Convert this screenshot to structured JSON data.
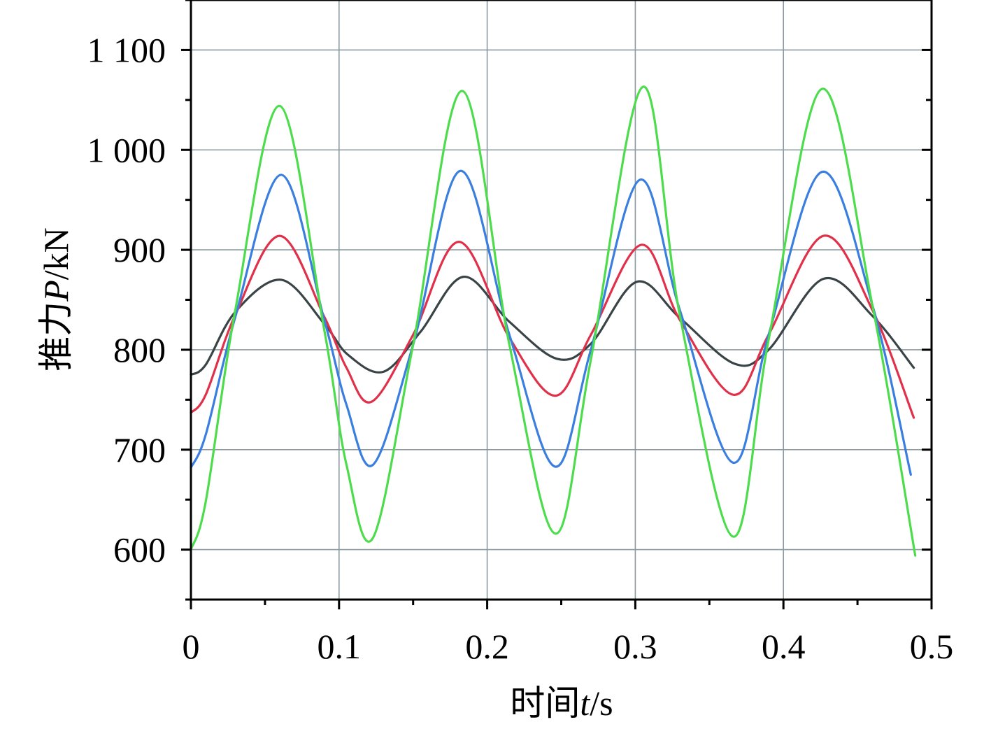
{
  "chart_data": {
    "type": "line",
    "title": "",
    "xlabel_prefix": "时间",
    "xlabel_var": "t",
    "xlabel_unit": "/s",
    "ylabel_prefix": "推力",
    "ylabel_var": "P",
    "ylabel_unit": "/kN",
    "xlim": [
      0,
      0.5
    ],
    "ylim": [
      550,
      1150
    ],
    "x_ticks": [
      0,
      0.1,
      0.2,
      0.3,
      0.4,
      0.5
    ],
    "x_tick_labels": [
      "0",
      "0.1",
      "0.2",
      "0.3",
      "0.4",
      "0.5"
    ],
    "y_ticks": [
      600,
      700,
      800,
      900,
      1000,
      1100
    ],
    "y_tick_labels": [
      "600",
      "700",
      "800",
      "900",
      "1 000",
      "1 100"
    ],
    "grid": true,
    "series": [
      {
        "color": "#3a4447",
        "x": [
          0,
          0.01,
          0.03,
          0.061,
          0.09,
          0.106,
          0.13,
          0.155,
          0.184,
          0.215,
          0.247,
          0.27,
          0.301,
          0.33,
          0.367,
          0.39,
          0.427,
          0.46,
          0.488
        ],
        "y": [
          775,
          785,
          838,
          870,
          826,
          795,
          778,
          818,
          873,
          828,
          791,
          806,
          868,
          832,
          786,
          800,
          871,
          834,
          782
        ]
      },
      {
        "color": "#e0304a",
        "x": [
          0,
          0.01,
          0.03,
          0.06,
          0.09,
          0.105,
          0.122,
          0.15,
          0.181,
          0.215,
          0.246,
          0.27,
          0.304,
          0.33,
          0.366,
          0.39,
          0.427,
          0.46,
          0.488
        ],
        "y": [
          737,
          755,
          835,
          914,
          833,
          782,
          748,
          815,
          908,
          812,
          754,
          815,
          905,
          830,
          755,
          815,
          914,
          840,
          732
        ]
      },
      {
        "color": "#3a7ee0",
        "x": [
          0,
          0.01,
          0.03,
          0.061,
          0.09,
          0.105,
          0.123,
          0.15,
          0.182,
          0.215,
          0.246,
          0.27,
          0.303,
          0.33,
          0.366,
          0.39,
          0.426,
          0.46,
          0.486
        ],
        "y": [
          682,
          715,
          833,
          975,
          830,
          745,
          685,
          805,
          979,
          815,
          683,
          800,
          970,
          840,
          687,
          815,
          978,
          845,
          675
        ]
      },
      {
        "color": "#4cdc4c",
        "x": [
          0,
          0.01,
          0.03,
          0.06,
          0.09,
          0.105,
          0.123,
          0.15,
          0.183,
          0.215,
          0.246,
          0.27,
          0.305,
          0.33,
          0.366,
          0.39,
          0.426,
          0.46,
          0.489
        ],
        "y": [
          600,
          648,
          840,
          1044,
          820,
          685,
          612,
          805,
          1059,
          805,
          616,
          790,
          1063,
          835,
          613,
          810,
          1061,
          845,
          594
        ]
      }
    ]
  }
}
